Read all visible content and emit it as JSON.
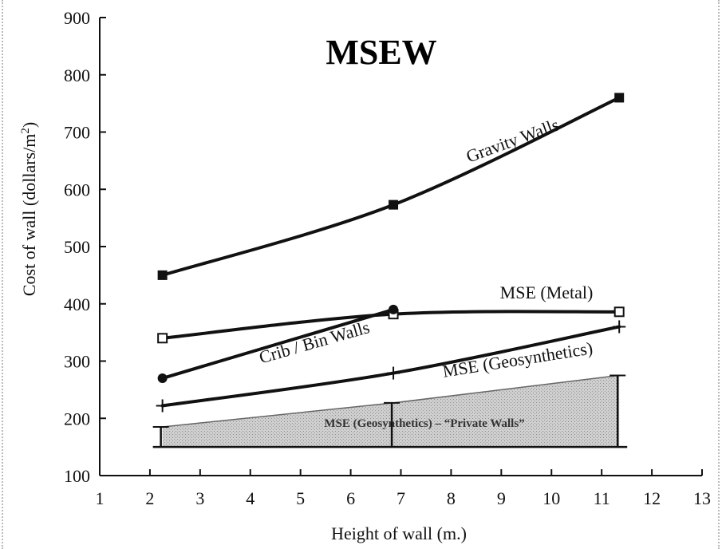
{
  "chart_data": {
    "type": "line",
    "title": "MSEW",
    "xlabel": "Height of wall (m.)",
    "ylabel": "Cost of wall (dollars/m",
    "ylabel_sup": "2",
    "ylabel_close": ")",
    "xlim": [
      1,
      13
    ],
    "ylim": [
      100,
      900
    ],
    "xticks": [
      1,
      2,
      3,
      4,
      5,
      6,
      7,
      8,
      9,
      10,
      11,
      12,
      13
    ],
    "yticks": [
      100,
      200,
      300,
      400,
      500,
      600,
      700,
      800,
      900
    ],
    "grid": false,
    "series": [
      {
        "name": "Gravity Walls",
        "marker": "filled-square",
        "x": [
          2.25,
          6.85,
          11.35
        ],
        "y": [
          450,
          573,
          760
        ]
      },
      {
        "name": "MSE (Metal)",
        "marker": "open-square",
        "x": [
          2.25,
          6.85,
          11.35
        ],
        "y": [
          340,
          382,
          386
        ]
      },
      {
        "name": "Crib / Bin Walls",
        "marker": "filled-circle",
        "x": [
          2.25,
          6.85
        ],
        "y": [
          270,
          390
        ]
      },
      {
        "name": "MSE (Geosynthetics)",
        "marker": "plus",
        "x": [
          2.25,
          6.85,
          11.35
        ],
        "y": [
          222,
          279,
          360
        ]
      }
    ],
    "band": {
      "name": "MSE (Geosynthetics) – “Private Walls”",
      "x": [
        2.25,
        6.85,
        11.35
      ],
      "lower": [
        150,
        150,
        150
      ],
      "upper": [
        185,
        227,
        275
      ]
    }
  }
}
